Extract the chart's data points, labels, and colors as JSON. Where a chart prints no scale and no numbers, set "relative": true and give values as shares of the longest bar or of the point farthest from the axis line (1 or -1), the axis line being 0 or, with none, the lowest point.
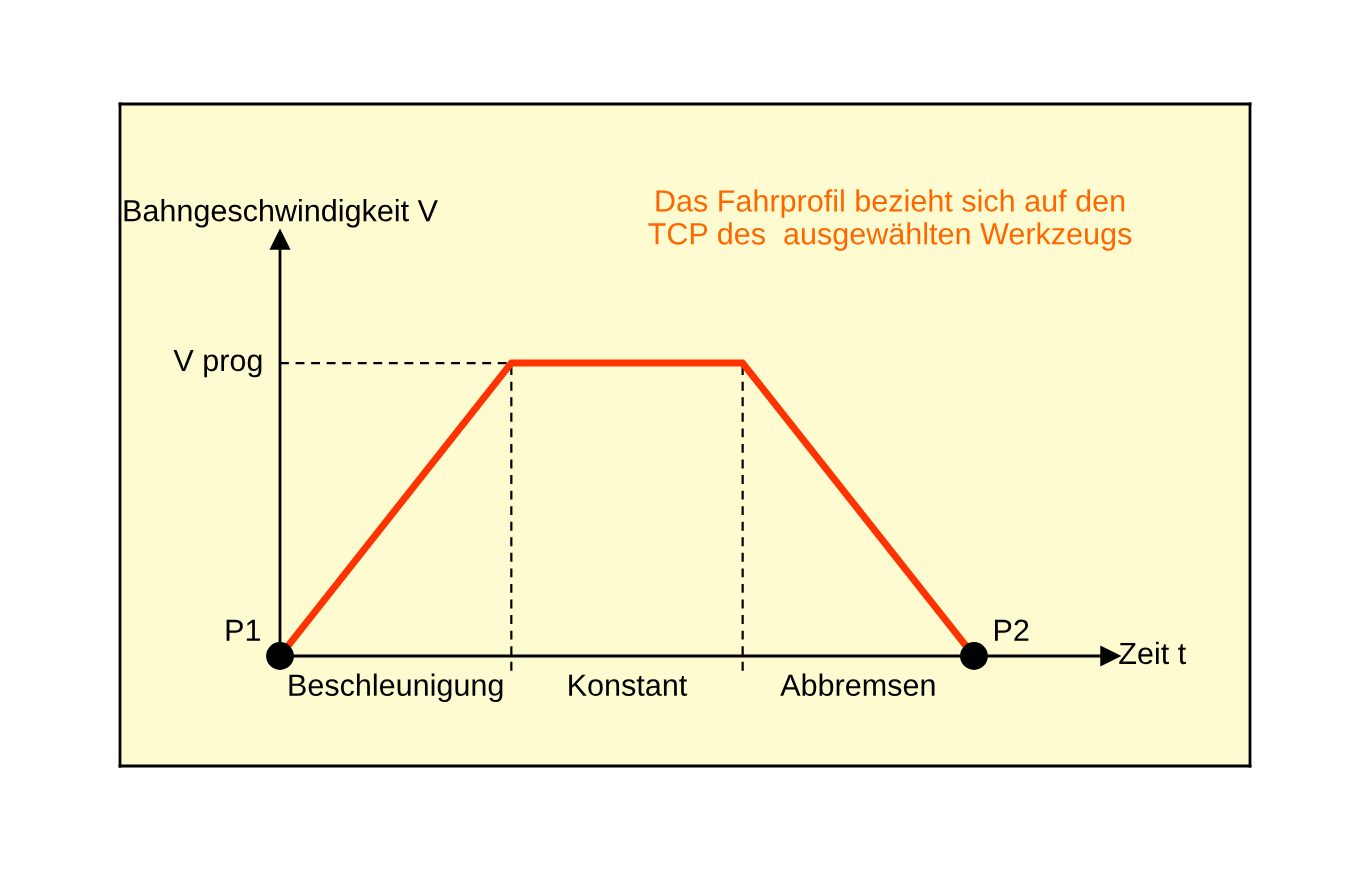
{
  "chart_data": {
    "type": "line",
    "title": "Das Fahrprofil bezieht sich auf den\nTCP des  ausgewählten Werkzeugs",
    "ylabel": "Bahngeschwindigkeit V",
    "xlabel": "Zeit t",
    "relative": true,
    "categories": [
      null,
      null,
      null,
      null
    ],
    "series": [
      {
        "color": "#ff3300",
        "values": [
          0,
          1,
          1,
          0
        ]
      }
    ],
    "marker": "circle",
    "ref_lines": [
      {
        "axis": "y",
        "value": 1,
        "label": "V prog",
        "line_style": "dashed",
        "color": "#000000"
      }
    ],
    "annotations": [
      "P1",
      "P2",
      "Beschleunigung",
      "Konstant",
      "Abbremsen"
    ]
  }
}
